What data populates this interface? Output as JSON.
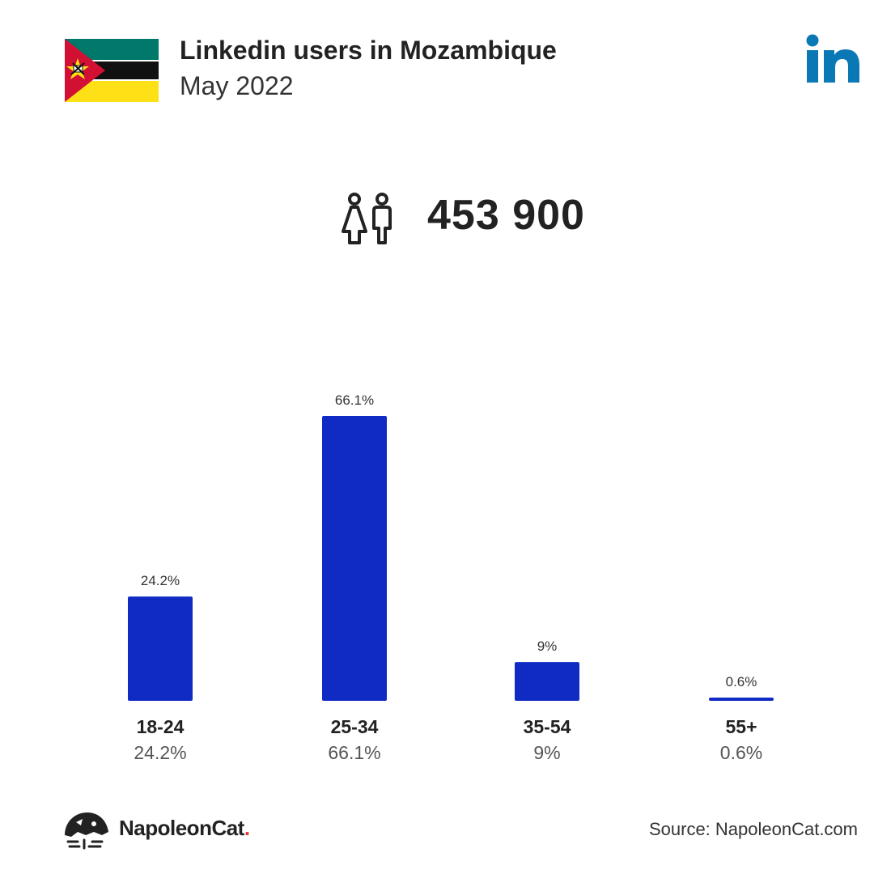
{
  "header": {
    "title": "Linkedin users in Mozambique",
    "subtitle": "May 2022",
    "flag_icon": "mozambique-flag-icon",
    "logo_icon": "linkedin-logo-icon"
  },
  "total_users": {
    "icon": "users-icon",
    "value": "453 900"
  },
  "chart_data": {
    "type": "bar",
    "title": "",
    "xlabel": "",
    "ylabel": "",
    "categories": [
      "18-24",
      "25-34",
      "35-54",
      "55+"
    ],
    "values": [
      24.2,
      66.1,
      9,
      0.6
    ],
    "value_labels": [
      "24.2%",
      "66.1%",
      "9%",
      "0.6%"
    ],
    "ylim": [
      0,
      66.1
    ],
    "grid": false,
    "bar_color": "#0f2bc4"
  },
  "footer": {
    "brand": "NapoleonCat",
    "brand_dot": ".",
    "source": "Source: NapoleonCat.com"
  },
  "colors": {
    "bar": "#0f2bc4",
    "linkedin_blue": "#0a78b5",
    "brand_dot": "#e23a3a"
  }
}
